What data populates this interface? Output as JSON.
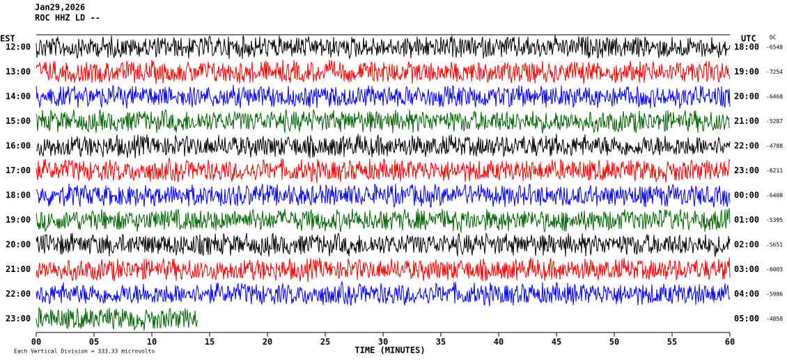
{
  "chart_data": {
    "type": "helicorder",
    "date": "Jan29,2026",
    "station": "ROC HHZ LD --",
    "left_label": "EST",
    "right_label": "UTC",
    "dc_label": "DC",
    "xlabel": "TIME (MINUTES)",
    "footer": "Each Vertical Division = 333.33 microvolts",
    "xlim": [
      0,
      60
    ],
    "xticks": [
      {
        "value": 0,
        "label": "00"
      },
      {
        "value": 5,
        "label": "05"
      },
      10,
      15,
      20,
      25,
      30,
      35,
      40,
      45,
      50,
      55,
      60
    ],
    "rows": [
      {
        "left": "12:00",
        "right": "18:00",
        "dc": -6548,
        "color": "#000000"
      },
      {
        "left": "13:00",
        "right": "19:00",
        "dc": -7254,
        "color": "#ff0000"
      },
      {
        "left": "14:00",
        "right": "20:00",
        "dc": -6468,
        "color": "#0000ff"
      },
      {
        "left": "15:00",
        "right": "21:00",
        "dc": -5287,
        "color": "#006400"
      },
      {
        "left": "16:00",
        "right": "22:00",
        "dc": -4788,
        "color": "#000000"
      },
      {
        "left": "17:00",
        "right": "23:00",
        "dc": -6211,
        "color": "#ff0000"
      },
      {
        "left": "18:00",
        "right": "00:00",
        "dc": -6408,
        "color": "#0000ff"
      },
      {
        "left": "19:00",
        "right": "01:00",
        "dc": -5395,
        "color": "#006400"
      },
      {
        "left": "20:00",
        "right": "02:00",
        "dc": -5651,
        "color": "#000000"
      },
      {
        "left": "21:00",
        "right": "03:00",
        "dc": -6003,
        "color": "#ff0000"
      },
      {
        "left": "22:00",
        "right": "04:00",
        "dc": -5986,
        "color": "#0000ff"
      },
      {
        "left": "23:00",
        "right": "05:00",
        "dc": -4858,
        "color": "#006400"
      }
    ]
  }
}
